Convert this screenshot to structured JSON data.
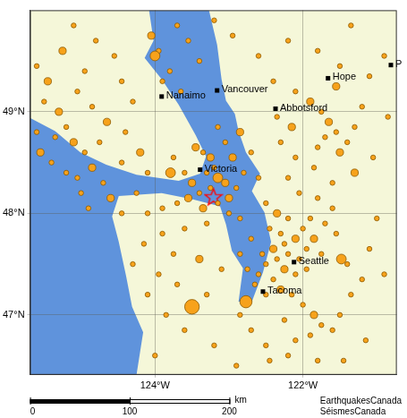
{
  "chart_data": {
    "type": "bubble",
    "xlim": [
      -125.69,
      -120.73
    ],
    "ylim": [
      46.41,
      50.0
    ],
    "xticks": [
      {
        "value": -124,
        "label": "124°W"
      },
      {
        "value": -122,
        "label": "122°W"
      }
    ],
    "yticks": [
      {
        "value": 47,
        "label": "47°N"
      },
      {
        "value": 48,
        "label": "48°N"
      },
      {
        "value": 49,
        "label": "49°N"
      }
    ],
    "grid": true,
    "color": "#f7a21b",
    "events": [
      [
        -125.6,
        49.45,
        1
      ],
      [
        -125.45,
        49.3,
        2
      ],
      [
        -125.5,
        49.1,
        1
      ],
      [
        -125.3,
        49.0,
        2
      ],
      [
        -125.2,
        48.85,
        1
      ],
      [
        -125.35,
        48.75,
        1
      ],
      [
        -125.1,
        48.7,
        2
      ],
      [
        -124.95,
        48.6,
        1
      ],
      [
        -124.85,
        48.45,
        2
      ],
      [
        -125.05,
        48.35,
        1
      ],
      [
        -124.7,
        48.3,
        1
      ],
      [
        -124.6,
        48.15,
        2
      ],
      [
        -124.9,
        48.05,
        1
      ],
      [
        -125.6,
        48.8,
        1
      ],
      [
        -125.55,
        48.6,
        2
      ],
      [
        -125.4,
        48.5,
        1
      ],
      [
        -125.2,
        48.4,
        1
      ],
      [
        -125.0,
        48.2,
        1
      ],
      [
        -124.75,
        48.7,
        1
      ],
      [
        -124.65,
        48.9,
        2
      ],
      [
        -124.85,
        49.05,
        1
      ],
      [
        -125.05,
        49.2,
        1
      ],
      [
        -124.95,
        49.4,
        1
      ],
      [
        -125.25,
        49.6,
        2
      ],
      [
        -125.1,
        49.85,
        1
      ],
      [
        -124.8,
        49.7,
        1
      ],
      [
        -124.55,
        49.55,
        1
      ],
      [
        -124.45,
        49.3,
        1
      ],
      [
        -124.3,
        49.1,
        1
      ],
      [
        -124.4,
        48.8,
        1
      ],
      [
        -124.2,
        48.6,
        2
      ],
      [
        -124.45,
        48.5,
        1
      ],
      [
        -124.1,
        48.4,
        1
      ],
      [
        -124.05,
        49.75,
        2
      ],
      [
        -123.95,
        49.6,
        1
      ],
      [
        -124.0,
        49.55,
        3
      ],
      [
        -123.8,
        49.4,
        1
      ],
      [
        -123.7,
        49.85,
        1
      ],
      [
        -123.55,
        49.7,
        1
      ],
      [
        -123.9,
        49.3,
        1
      ],
      [
        -123.65,
        49.2,
        1
      ],
      [
        -123.4,
        49.5,
        1
      ],
      [
        -123.2,
        49.9,
        1
      ],
      [
        -122.95,
        49.75,
        1
      ],
      [
        -123.45,
        48.65,
        2
      ],
      [
        -123.35,
        48.6,
        1
      ],
      [
        -123.25,
        48.55,
        2
      ],
      [
        -123.2,
        48.45,
        1
      ],
      [
        -123.3,
        48.4,
        1
      ],
      [
        -123.15,
        48.35,
        3
      ],
      [
        -123.05,
        48.3,
        2
      ],
      [
        -123.25,
        48.25,
        1
      ],
      [
        -123.4,
        48.2,
        1
      ],
      [
        -123.55,
        48.15,
        2
      ],
      [
        -123.7,
        48.1,
        1
      ],
      [
        -123.9,
        48.05,
        1
      ],
      [
        -124.1,
        48.0,
        1
      ],
      [
        -123.35,
        48.05,
        2
      ],
      [
        -123.15,
        48.1,
        1
      ],
      [
        -123.0,
        48.15,
        2
      ],
      [
        -122.9,
        48.25,
        1
      ],
      [
        -122.8,
        48.4,
        1
      ],
      [
        -122.95,
        48.55,
        2
      ],
      [
        -123.05,
        48.7,
        1
      ],
      [
        -123.15,
        48.85,
        1
      ],
      [
        -122.85,
        48.8,
        2
      ],
      [
        -122.7,
        48.6,
        1
      ],
      [
        -122.6,
        48.35,
        1
      ],
      [
        -123.6,
        48.4,
        1
      ],
      [
        -123.75,
        48.55,
        1
      ],
      [
        -123.5,
        48.3,
        2
      ],
      [
        -123.0,
        48.0,
        1
      ],
      [
        -122.85,
        47.95,
        1
      ],
      [
        -123.3,
        47.9,
        1
      ],
      [
        -123.6,
        47.85,
        1
      ],
      [
        -123.9,
        47.8,
        1
      ],
      [
        -124.15,
        47.7,
        1
      ],
      [
        -122.4,
        49.3,
        1
      ],
      [
        -122.1,
        49.2,
        1
      ],
      [
        -121.9,
        49.1,
        2
      ],
      [
        -121.75,
        49.0,
        1
      ],
      [
        -121.65,
        48.9,
        2
      ],
      [
        -121.55,
        48.8,
        1
      ],
      [
        -121.7,
        48.75,
        1
      ],
      [
        -121.8,
        48.65,
        1
      ],
      [
        -121.5,
        48.6,
        2
      ],
      [
        -121.4,
        48.7,
        1
      ],
      [
        -121.3,
        48.85,
        1
      ],
      [
        -121.2,
        49.05,
        1
      ],
      [
        -121.1,
        49.35,
        1
      ],
      [
        -120.9,
        49.55,
        1
      ],
      [
        -121.5,
        49.45,
        1
      ],
      [
        -121.8,
        49.6,
        1
      ],
      [
        -122.2,
        49.7,
        1
      ],
      [
        -122.6,
        49.55,
        1
      ],
      [
        -121.35,
        49.85,
        1
      ],
      [
        -120.85,
        48.95,
        1
      ],
      [
        -121.05,
        48.55,
        1
      ],
      [
        -121.3,
        48.4,
        2
      ],
      [
        -121.6,
        48.3,
        1
      ],
      [
        -121.85,
        48.45,
        1
      ],
      [
        -122.1,
        48.55,
        1
      ],
      [
        -122.3,
        48.7,
        1
      ],
      [
        -122.35,
        48.95,
        1
      ],
      [
        -122.15,
        48.85,
        2
      ],
      [
        -122.5,
        48.1,
        1
      ],
      [
        -122.35,
        48.0,
        2
      ],
      [
        -122.2,
        47.95,
        1
      ],
      [
        -122.45,
        47.85,
        1
      ],
      [
        -122.3,
        47.8,
        1
      ],
      [
        -122.1,
        47.75,
        2
      ],
      [
        -122.25,
        47.7,
        1
      ],
      [
        -122.4,
        47.65,
        2
      ],
      [
        -122.55,
        47.6,
        1
      ],
      [
        -122.2,
        47.6,
        1
      ],
      [
        -122.05,
        47.55,
        1
      ],
      [
        -121.95,
        47.65,
        1
      ],
      [
        -121.85,
        47.75,
        2
      ],
      [
        -121.75,
        47.6,
        1
      ],
      [
        -122.35,
        47.55,
        1
      ],
      [
        -122.5,
        47.5,
        1
      ],
      [
        -122.25,
        47.45,
        2
      ],
      [
        -122.1,
        47.4,
        1
      ],
      [
        -121.95,
        47.45,
        1
      ],
      [
        -122.6,
        47.4,
        1
      ],
      [
        -122.4,
        47.35,
        1
      ],
      [
        -122.3,
        47.25,
        2
      ],
      [
        -122.15,
        47.2,
        1
      ],
      [
        -122.5,
        47.2,
        1
      ],
      [
        -122.65,
        47.3,
        1
      ],
      [
        -122.75,
        47.45,
        1
      ],
      [
        -122.85,
        47.6,
        1
      ],
      [
        -122.7,
        47.75,
        1
      ],
      [
        -122.0,
        47.85,
        1
      ],
      [
        -121.9,
        47.95,
        1
      ],
      [
        -121.7,
        47.9,
        1
      ],
      [
        -121.55,
        47.8,
        1
      ],
      [
        -121.6,
        48.05,
        1
      ],
      [
        -121.8,
        48.15,
        1
      ],
      [
        -122.05,
        48.2,
        1
      ],
      [
        -122.2,
        48.35,
        1
      ],
      [
        -122.0,
        47.1,
        1
      ],
      [
        -121.85,
        47.0,
        2
      ],
      [
        -121.75,
        46.9,
        1
      ],
      [
        -121.6,
        46.85,
        1
      ],
      [
        -121.9,
        46.8,
        1
      ],
      [
        -122.1,
        46.75,
        1
      ],
      [
        -122.25,
        46.95,
        1
      ],
      [
        -121.5,
        47.0,
        1
      ],
      [
        -121.35,
        47.2,
        1
      ],
      [
        -121.2,
        47.35,
        1
      ],
      [
        -121.4,
        47.5,
        1
      ],
      [
        -121.1,
        47.65,
        1
      ],
      [
        -121.0,
        47.95,
        1
      ],
      [
        -120.9,
        47.4,
        1
      ],
      [
        -121.15,
        46.75,
        1
      ],
      [
        -121.45,
        46.55,
        1
      ],
      [
        -121.8,
        46.55,
        1
      ],
      [
        -122.2,
        46.6,
        1
      ],
      [
        -122.5,
        46.7,
        1
      ],
      [
        -122.7,
        46.85,
        1
      ],
      [
        -122.85,
        47.0,
        1
      ],
      [
        -122.77,
        47.13,
        4
      ],
      [
        -122.45,
        46.55,
        1
      ],
      [
        -123.5,
        47.08,
        5
      ],
      [
        -123.3,
        47.2,
        1
      ],
      [
        -123.7,
        47.3,
        1
      ],
      [
        -123.95,
        47.4,
        1
      ],
      [
        -124.1,
        47.2,
        1
      ],
      [
        -123.85,
        47.0,
        1
      ],
      [
        -123.6,
        46.85,
        1
      ],
      [
        -123.2,
        46.7,
        1
      ],
      [
        -122.9,
        46.5,
        1
      ],
      [
        -124.0,
        46.6,
        1
      ],
      [
        -123.4,
        47.55,
        2
      ],
      [
        -123.1,
        47.45,
        1
      ],
      [
        -123.75,
        47.6,
        1
      ],
      [
        -124.3,
        47.5,
        1
      ],
      [
        -124.25,
        48.2,
        1
      ],
      [
        -124.45,
        48.0,
        1
      ],
      [
        -121.48,
        47.55,
        3
      ],
      [
        -123.79,
        48.4,
        3
      ],
      [
        -121.55,
        49.25,
        2
      ]
    ],
    "epicentre": {
      "x": -123.21,
      "y": 48.16,
      "marker": "star",
      "color": "#ff0000"
    },
    "cities": [
      {
        "label": "Nanaimo",
        "x": -123.91,
        "y": 49.15
      },
      {
        "label": "Vancouver",
        "x": -123.16,
        "y": 49.21
      },
      {
        "label": "Hope",
        "x": -121.66,
        "y": 49.33
      },
      {
        "label": "Abbotsford",
        "x": -122.37,
        "y": 49.03
      },
      {
        "label": "Victoria",
        "x": -123.39,
        "y": 48.43
      },
      {
        "label": "Seattle",
        "x": -122.12,
        "y": 47.52
      },
      {
        "label": "Tacoma",
        "x": -122.54,
        "y": 47.23
      },
      {
        "label": "P",
        "x": -120.81,
        "y": 49.46
      }
    ],
    "water": [
      [
        [
          -125.69,
          48.94
        ],
        [
          -125.35,
          48.81
        ],
        [
          -125.01,
          48.6
        ],
        [
          -124.66,
          48.48
        ],
        [
          -124.25,
          48.38
        ],
        [
          -123.68,
          48.32
        ],
        [
          -123.39,
          48.39
        ],
        [
          -123.31,
          48.56
        ],
        [
          -123.45,
          48.77
        ],
        [
          -123.68,
          49.07
        ],
        [
          -123.91,
          49.32
        ],
        [
          -124.14,
          49.53
        ],
        [
          -124.02,
          49.7
        ],
        [
          -124.08,
          50.0
        ],
        [
          -123.27,
          50.0
        ],
        [
          -123.16,
          49.66
        ],
        [
          -123.1,
          49.32
        ],
        [
          -123.04,
          49.11
        ],
        [
          -122.92,
          48.98
        ],
        [
          -122.87,
          48.81
        ],
        [
          -122.77,
          48.6
        ],
        [
          -122.58,
          48.39
        ],
        [
          -122.69,
          48.22
        ],
        [
          -122.52,
          48.01
        ],
        [
          -122.43,
          47.72
        ],
        [
          -122.54,
          47.42
        ],
        [
          -122.69,
          47.13
        ],
        [
          -122.87,
          47.13
        ],
        [
          -122.81,
          47.46
        ],
        [
          -122.96,
          47.63
        ],
        [
          -123.04,
          47.89
        ],
        [
          -123.12,
          48.07
        ],
        [
          -123.5,
          48.14
        ],
        [
          -123.91,
          48.2
        ],
        [
          -124.49,
          48.17
        ],
        [
          -124.58,
          47.97
        ],
        [
          -124.49,
          47.72
        ],
        [
          -124.39,
          47.38
        ],
        [
          -124.31,
          47.08
        ],
        [
          -124.16,
          46.83
        ],
        [
          -124.25,
          46.41
        ],
        [
          -125.69,
          46.41
        ]
      ]
    ],
    "scale_bar": {
      "ticks": [
        0,
        100,
        200
      ],
      "label": "km"
    },
    "credit": [
      "EarthquakesCanada",
      "SéismesCanada"
    ]
  }
}
